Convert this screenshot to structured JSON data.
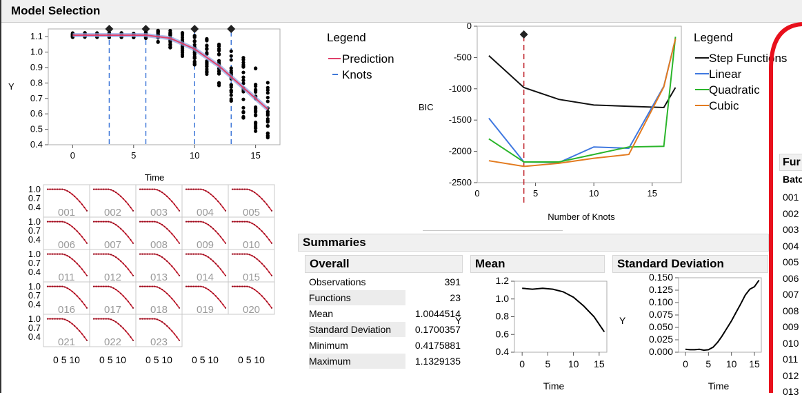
{
  "header": {
    "title": "Model Selection"
  },
  "main_plot": {
    "ylabel": "Y",
    "xlabel": "Time",
    "yticks": [
      "1.1",
      "1.0",
      "0.9",
      "0.8",
      "0.7",
      "0.6",
      "0.5",
      "0.4"
    ],
    "xticks": [
      "0",
      "5",
      "10",
      "15"
    ]
  },
  "legend1": {
    "title": "Legend",
    "items": [
      "Prediction",
      "Knots"
    ],
    "colors": [
      "#e0406a",
      "#3f78d8"
    ]
  },
  "bic_plot": {
    "ylabel": "BIC",
    "xlabel": "Number of Knots",
    "yticks": [
      "0",
      "-500",
      "-1000",
      "-1500",
      "-2000",
      "-2500"
    ],
    "xticks": [
      "5",
      "10",
      "15"
    ]
  },
  "legend2": {
    "title": "Legend",
    "items": [
      "Step Functions",
      "Linear",
      "Quadratic",
      "Cubic"
    ],
    "colors": [
      "#111111",
      "#3f78e0",
      "#2ab52a",
      "#e37b1f"
    ]
  },
  "small_multiples": {
    "labels": [
      "001",
      "002",
      "003",
      "004",
      "005",
      "006",
      "007",
      "008",
      "009",
      "010",
      "011",
      "012",
      "013",
      "014",
      "015",
      "016",
      "017",
      "018",
      "019",
      "020",
      "021",
      "022",
      "023"
    ],
    "yticks": [
      "1.0",
      "0.7",
      "0.4"
    ],
    "xticks": [
      "0 5 10",
      "0 5 10",
      "0 5 10",
      "0 5 10",
      "0 5 10"
    ]
  },
  "summaries": {
    "title": "Summaries",
    "overall": {
      "title": "Overall",
      "rows": [
        {
          "label": "Observations",
          "value": "391"
        },
        {
          "label": "Functions",
          "value": "23"
        },
        {
          "label": "Mean",
          "value": "1.0044514"
        },
        {
          "label": "Standard Deviation",
          "value": "0.1700357"
        },
        {
          "label": "Minimum",
          "value": "0.4175881"
        },
        {
          "label": "Maximum",
          "value": "1.1329135"
        }
      ]
    },
    "mean": {
      "title": "Mean",
      "ylabel": "Y",
      "xlabel": "Time",
      "yticks": [
        "1.2",
        "1.0",
        "0.8",
        "0.6",
        "0.4"
      ],
      "xticks": [
        "0",
        "5",
        "10",
        "15"
      ]
    },
    "std": {
      "title": "Standard Deviation",
      "ylabel": "Y",
      "xlabel": "Time",
      "yticks": [
        "0.150",
        "0.125",
        "0.100",
        "0.075",
        "0.050",
        "0.025",
        "0.000"
      ],
      "xticks": [
        "0",
        "5",
        "10",
        "15"
      ]
    }
  },
  "right_table": {
    "header": "Fur",
    "column": "Batc",
    "rows": [
      "001",
      "002",
      "003",
      "004",
      "005",
      "006",
      "007",
      "008",
      "009",
      "010",
      "011",
      "012",
      "013"
    ]
  },
  "chart_data": [
    {
      "type": "scatter",
      "x_axis": "Time",
      "y_axis": "Y",
      "xlim": [
        -2,
        17
      ],
      "ylim": [
        0.4,
        1.15
      ],
      "series": [
        {
          "name": "Prediction",
          "x": [
            0,
            3,
            6,
            8,
            10,
            12,
            14,
            16
          ],
          "y": [
            1.11,
            1.11,
            1.11,
            1.09,
            1.02,
            0.91,
            0.77,
            0.63
          ]
        }
      ],
      "knots": [
        3,
        6,
        10,
        13
      ]
    },
    {
      "type": "line",
      "xlabel": "Number of Knots",
      "ylabel": "BIC",
      "xlim": [
        0,
        17.5
      ],
      "ylim": [
        -2500,
        0
      ],
      "selected_knots": 4,
      "series": [
        {
          "name": "Step Functions",
          "x": [
            1,
            4,
            7,
            10,
            13,
            16,
            17
          ],
          "y": [
            -470,
            -980,
            -1170,
            -1260,
            -1280,
            -1300,
            -980
          ]
        },
        {
          "name": "Linear",
          "x": [
            1,
            4,
            7,
            10,
            13,
            16,
            17
          ],
          "y": [
            -1470,
            -2170,
            -2180,
            -1930,
            -1950,
            -960,
            -200
          ]
        },
        {
          "name": "Quadratic",
          "x": [
            1,
            4,
            7,
            10,
            13,
            16,
            17
          ],
          "y": [
            -1800,
            -2170,
            -2170,
            -2050,
            -1930,
            -1920,
            -170
          ]
        },
        {
          "name": "Cubic",
          "x": [
            1,
            4,
            7,
            10,
            13,
            16,
            17
          ],
          "y": [
            -2150,
            -2240,
            -2190,
            -2110,
            -2050,
            -970,
            -200
          ]
        }
      ]
    },
    {
      "type": "line",
      "title": "Mean",
      "xlim": [
        -1.5,
        16.5
      ],
      "ylim": [
        0.4,
        1.2
      ],
      "series": [
        {
          "x": [
            0,
            2,
            4,
            6,
            8,
            10,
            12,
            14,
            16
          ],
          "y": [
            1.12,
            1.11,
            1.12,
            1.11,
            1.08,
            1.02,
            0.92,
            0.8,
            0.63
          ]
        }
      ]
    },
    {
      "type": "line",
      "title": "Standard Deviation",
      "xlim": [
        -1.5,
        16.5
      ],
      "ylim": [
        0,
        0.15
      ],
      "series": [
        {
          "x": [
            0,
            1,
            2,
            3,
            4,
            5,
            6,
            7,
            8,
            9,
            10,
            11,
            12,
            13,
            14,
            15,
            16
          ],
          "y": [
            0.006,
            0.005,
            0.005,
            0.006,
            0.004,
            0.005,
            0.01,
            0.02,
            0.033,
            0.048,
            0.063,
            0.08,
            0.097,
            0.115,
            0.127,
            0.132,
            0.145
          ]
        }
      ]
    }
  ]
}
